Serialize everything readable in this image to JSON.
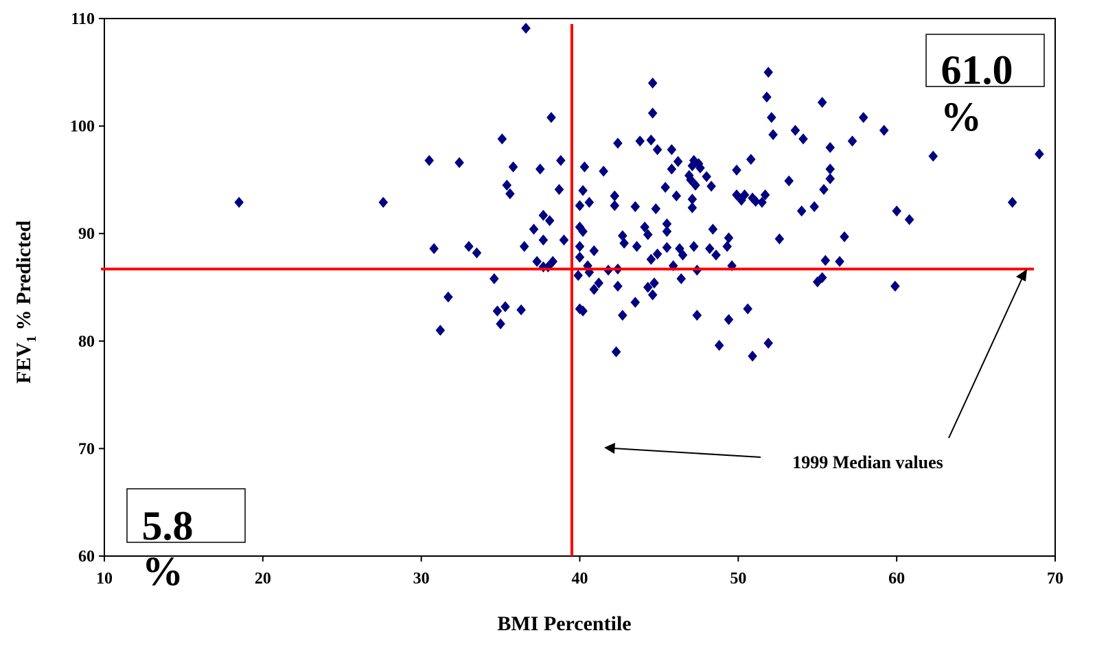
{
  "chart_data": {
    "type": "scatter",
    "xlabel": "BMI Percentile",
    "ylabel": {
      "main": "FEV",
      "sub": "1",
      "rest": " % Predicted"
    },
    "xlim": [
      10,
      70
    ],
    "ylim": [
      60,
      110
    ],
    "xticks": [
      10,
      20,
      30,
      40,
      50,
      60,
      70
    ],
    "yticks": [
      60,
      70,
      80,
      90,
      100,
      110
    ],
    "grid": false,
    "marker": "diamond",
    "marker_color": "#000080",
    "median_line_color": "#ff0000",
    "median_x": 39.5,
    "median_y": 86.7,
    "annotation": "1999 Median values",
    "quadrant_labels": {
      "top_right_value": "61.0",
      "top_right_unit": "%",
      "bottom_left_value": "5.8",
      "bottom_left_unit": "%"
    },
    "points": [
      [
        18.5,
        92.9
      ],
      [
        27.6,
        92.9
      ],
      [
        30.5,
        96.8
      ],
      [
        30.8,
        88.6
      ],
      [
        31.2,
        81.0
      ],
      [
        31.7,
        84.1
      ],
      [
        32.4,
        96.6
      ],
      [
        33.0,
        88.8
      ],
      [
        33.5,
        88.2
      ],
      [
        34.6,
        85.8
      ],
      [
        34.8,
        82.8
      ],
      [
        35.0,
        81.6
      ],
      [
        35.1,
        98.8
      ],
      [
        35.3,
        83.2
      ],
      [
        35.4,
        94.5
      ],
      [
        35.6,
        93.7
      ],
      [
        35.8,
        96.2
      ],
      [
        36.3,
        82.9
      ],
      [
        36.5,
        88.8
      ],
      [
        36.6,
        109.1
      ],
      [
        37.1,
        90.4
      ],
      [
        37.3,
        87.4
      ],
      [
        37.5,
        96.0
      ],
      [
        37.7,
        86.9
      ],
      [
        37.7,
        91.7
      ],
      [
        37.7,
        89.4
      ],
      [
        38.0,
        86.9
      ],
      [
        38.1,
        91.2
      ],
      [
        38.2,
        100.8
      ],
      [
        38.3,
        87.4
      ],
      [
        38.7,
        94.1
      ],
      [
        38.8,
        96.8
      ],
      [
        39.0,
        89.4
      ],
      [
        39.9,
        86.1
      ],
      [
        40.0,
        90.6
      ],
      [
        40.0,
        88.8
      ],
      [
        40.0,
        87.8
      ],
      [
        40.0,
        83.0
      ],
      [
        40.0,
        92.6
      ],
      [
        40.2,
        82.8
      ],
      [
        40.2,
        94.0
      ],
      [
        40.2,
        90.2
      ],
      [
        40.3,
        96.2
      ],
      [
        40.5,
        87.0
      ],
      [
        40.6,
        86.4
      ],
      [
        40.6,
        92.9
      ],
      [
        40.9,
        88.4
      ],
      [
        40.9,
        84.8
      ],
      [
        41.2,
        85.4
      ],
      [
        41.5,
        95.8
      ],
      [
        41.8,
        86.6
      ],
      [
        42.2,
        92.6
      ],
      [
        42.2,
        93.5
      ],
      [
        42.3,
        79.0
      ],
      [
        42.4,
        98.4
      ],
      [
        42.4,
        86.7
      ],
      [
        42.4,
        85.1
      ],
      [
        42.7,
        82.4
      ],
      [
        42.7,
        89.8
      ],
      [
        42.8,
        89.1
      ],
      [
        43.5,
        92.5
      ],
      [
        43.5,
        83.6
      ],
      [
        43.6,
        88.8
      ],
      [
        43.8,
        98.6
      ],
      [
        44.1,
        90.6
      ],
      [
        44.3,
        89.9
      ],
      [
        44.3,
        85.0
      ],
      [
        44.5,
        98.7
      ],
      [
        44.5,
        87.6
      ],
      [
        44.6,
        104.0
      ],
      [
        44.6,
        101.2
      ],
      [
        44.6,
        84.3
      ],
      [
        44.7,
        85.4
      ],
      [
        44.8,
        92.3
      ],
      [
        44.9,
        88.1
      ],
      [
        44.9,
        97.8
      ],
      [
        45.4,
        94.3
      ],
      [
        45.5,
        90.9
      ],
      [
        45.5,
        90.2
      ],
      [
        45.5,
        88.7
      ],
      [
        45.8,
        97.8
      ],
      [
        45.8,
        96.0
      ],
      [
        45.9,
        87.0
      ],
      [
        46.1,
        93.5
      ],
      [
        46.2,
        96.7
      ],
      [
        46.3,
        88.6
      ],
      [
        46.4,
        85.8
      ],
      [
        46.5,
        88.0
      ],
      [
        46.9,
        95.4
      ],
      [
        47.0,
        95.0
      ],
      [
        47.1,
        96.3
      ],
      [
        47.1,
        93.2
      ],
      [
        47.1,
        92.4
      ],
      [
        47.2,
        96.8
      ],
      [
        47.2,
        88.8
      ],
      [
        47.3,
        94.5
      ],
      [
        47.4,
        86.6
      ],
      [
        47.5,
        96.5
      ],
      [
        47.4,
        82.4
      ],
      [
        47.6,
        96.1
      ],
      [
        48.0,
        95.3
      ],
      [
        48.2,
        88.6
      ],
      [
        48.3,
        94.4
      ],
      [
        48.4,
        90.4
      ],
      [
        48.6,
        88.0
      ],
      [
        48.8,
        79.6
      ],
      [
        49.3,
        88.8
      ],
      [
        49.4,
        89.6
      ],
      [
        49.4,
        82.0
      ],
      [
        49.6,
        87.0
      ],
      [
        49.9,
        95.9
      ],
      [
        49.9,
        93.6
      ],
      [
        50.2,
        93.1
      ],
      [
        50.4,
        93.6
      ],
      [
        50.6,
        83.0
      ],
      [
        50.8,
        96.9
      ],
      [
        50.9,
        78.6
      ],
      [
        50.9,
        93.3
      ],
      [
        51.1,
        93.0
      ],
      [
        51.5,
        92.9
      ],
      [
        51.7,
        93.6
      ],
      [
        51.8,
        102.7
      ],
      [
        51.9,
        105.0
      ],
      [
        51.9,
        79.8
      ],
      [
        52.1,
        100.8
      ],
      [
        52.2,
        99.2
      ],
      [
        52.6,
        89.5
      ],
      [
        53.2,
        94.9
      ],
      [
        53.6,
        99.6
      ],
      [
        54.0,
        92.1
      ],
      [
        54.1,
        98.8
      ],
      [
        54.8,
        92.5
      ],
      [
        55.0,
        85.5
      ],
      [
        55.3,
        85.9
      ],
      [
        55.3,
        102.2
      ],
      [
        55.4,
        94.1
      ],
      [
        55.5,
        87.5
      ],
      [
        55.8,
        95.1
      ],
      [
        55.8,
        96.0
      ],
      [
        55.8,
        98.0
      ],
      [
        56.4,
        87.4
      ],
      [
        56.7,
        89.7
      ],
      [
        57.2,
        98.6
      ],
      [
        57.9,
        100.8
      ],
      [
        59.2,
        99.6
      ],
      [
        59.9,
        85.1
      ],
      [
        60.0,
        92.1
      ],
      [
        60.8,
        91.3
      ],
      [
        62.3,
        97.2
      ],
      [
        67.3,
        92.9
      ],
      [
        69.0,
        97.4
      ]
    ]
  }
}
